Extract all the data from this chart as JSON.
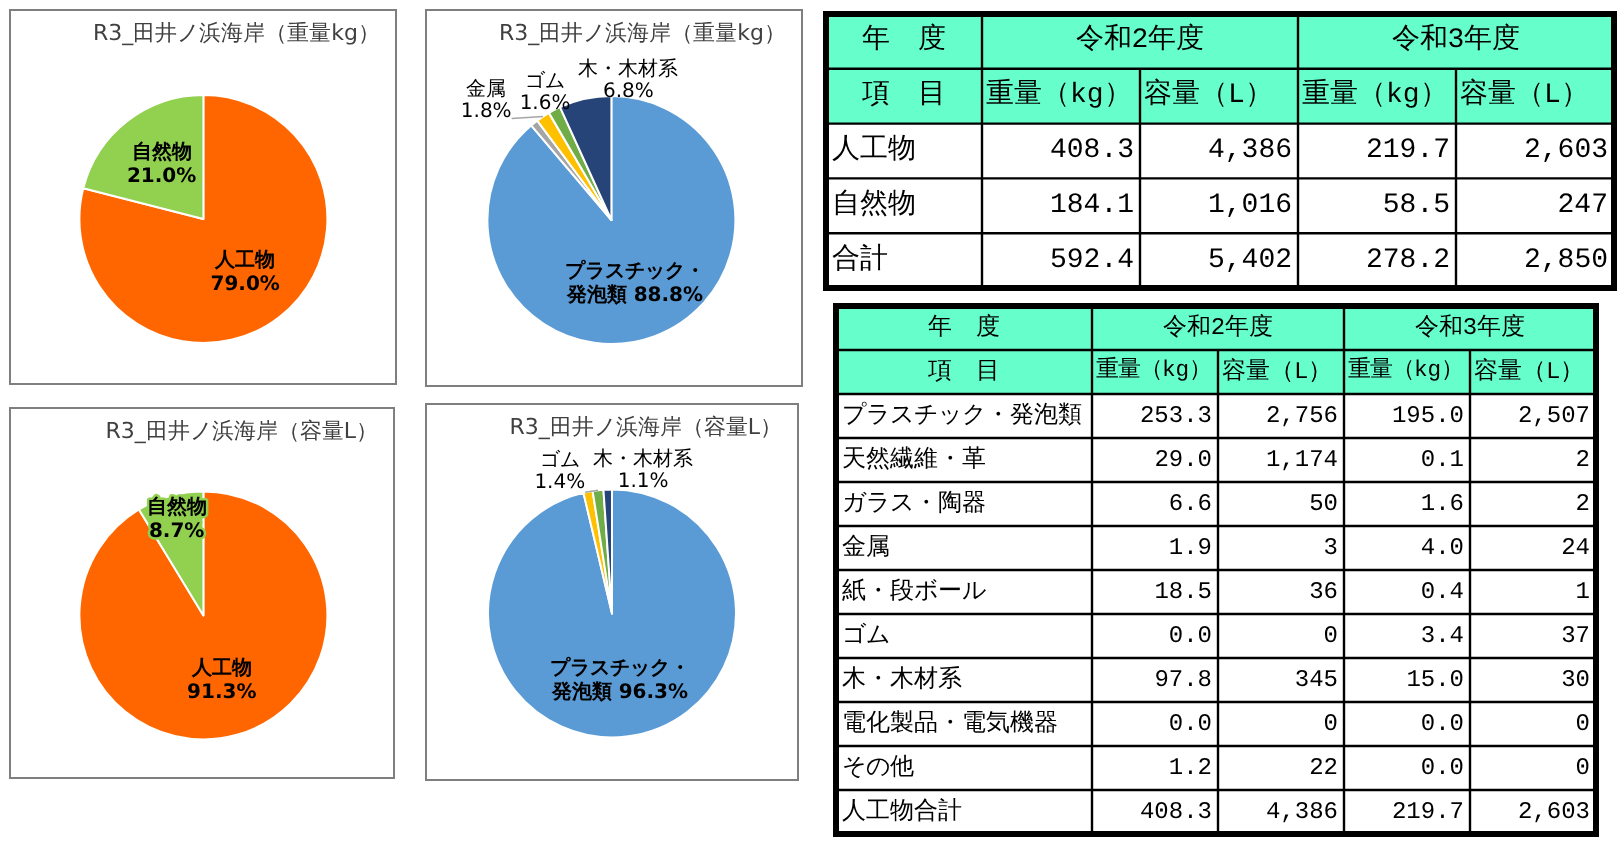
{
  "chart_data": [
    {
      "type": "pie",
      "title": "R3_田井ノ浜海岸（重量kg）",
      "categories": [
        "人工物",
        "自然物"
      ],
      "values": [
        79.0,
        21.0
      ],
      "colors": [
        "#ff6600",
        "#92d050"
      ],
      "value_labels": [
        "79.0%",
        "21.0%"
      ]
    },
    {
      "type": "pie",
      "title": "R3_田井ノ浜海岸（重量kg）",
      "categories": [
        "プラスチック・発泡類",
        null,
        "金属",
        "ゴム",
        "木・木材系"
      ],
      "values": [
        88.8,
        1.0,
        1.8,
        1.6,
        6.8
      ],
      "colors": [
        "#5b9bd5",
        "#a5a5a5",
        "#ffc000",
        "#70ad47",
        "#264478"
      ],
      "value_labels": [
        "88.8%",
        null,
        "1.8%",
        "1.6%",
        "6.8%"
      ]
    },
    {
      "type": "heatmap",
      "categories": [
        "重量（kg）",
        "容量（L）",
        "重量（kg）",
        "容量（L）"
      ],
      "y_categories": [
        "人工物",
        "自然物",
        "合計"
      ],
      "cells": [
        [
          408.3,
          4386,
          219.7,
          2603
        ],
        [
          184.1,
          1016,
          58.5,
          247
        ],
        [
          592.4,
          5402,
          278.2,
          2850
        ]
      ],
      "cell_labels": [
        [
          "408.3",
          "4,386",
          "219.7",
          "2,603"
        ],
        [
          "184.1",
          "1,016",
          "58.5",
          "247"
        ],
        [
          "592.4",
          "5,402",
          "278.2",
          "2,850"
        ]
      ],
      "annotations": [
        "年　度",
        "項　目",
        "令和2年度",
        "令和3年度"
      ]
    },
    {
      "type": "pie",
      "title": "R3_田井ノ浜海岸（容量L）",
      "categories": [
        "人工物",
        "自然物"
      ],
      "values": [
        91.3,
        8.7
      ],
      "colors": [
        "#ff6600",
        "#92d050"
      ],
      "value_labels": [
        "91.3%",
        "8.7%"
      ]
    },
    {
      "type": "pie",
      "title": "R3_田井ノ浜海岸（容量L）",
      "categories": [
        "プラスチック・発泡類",
        null,
        "ゴム",
        "木・木材系"
      ],
      "values": [
        96.3,
        1.2,
        1.4,
        1.1
      ],
      "colors": [
        "#5b9bd5",
        "#ffc000",
        "#70ad47",
        "#264478"
      ],
      "value_labels": [
        "96.3%",
        null,
        "1.4%",
        "1.1%"
      ]
    },
    {
      "type": "heatmap",
      "categories": [
        "重量（kg）",
        "容量（L）",
        "重量（kg）",
        "容量（L）"
      ],
      "y_categories": [
        "プラスチック・発泡類",
        "天然繊維・革",
        "ガラス・陶器",
        "金属",
        "紙・段ボール",
        "ゴム",
        "木・木材系",
        "電化製品・電気機器",
        "その他",
        "人工物合計"
      ],
      "cells": [
        [
          253.3,
          2756,
          195.0,
          2507
        ],
        [
          29.0,
          1174,
          0.1,
          2
        ],
        [
          6.6,
          50,
          1.6,
          2
        ],
        [
          1.9,
          3,
          4.0,
          24
        ],
        [
          18.5,
          36,
          0.4,
          1
        ],
        [
          0.0,
          0,
          3.4,
          37
        ],
        [
          97.8,
          345,
          15.0,
          30
        ],
        [
          0.0,
          0,
          0.0,
          0
        ],
        [
          1.2,
          22,
          0.0,
          0
        ],
        [
          408.3,
          4386,
          219.7,
          2603
        ]
      ],
      "cell_labels": [
        [
          "253.3",
          "2,756",
          "195.0",
          "2,507"
        ],
        [
          "29.0",
          "1,174",
          "0.1",
          "2"
        ],
        [
          "6.6",
          "50",
          "1.6",
          "2"
        ],
        [
          "1.9",
          "3",
          "4.0",
          "24"
        ],
        [
          "18.5",
          "36",
          "0.4",
          "1"
        ],
        [
          "0.0",
          "0",
          "3.4",
          "37"
        ],
        [
          "97.8",
          "345",
          "15.0",
          "30"
        ],
        [
          "0.0",
          "0",
          "0.0",
          "0"
        ],
        [
          "1.2",
          "22",
          "0.0",
          "0"
        ],
        [
          "408.3",
          "4,386",
          "219.7",
          "2,603"
        ]
      ],
      "annotations": [
        "年　度",
        "項　目",
        "令和2年度",
        "令和3年度"
      ]
    }
  ]
}
